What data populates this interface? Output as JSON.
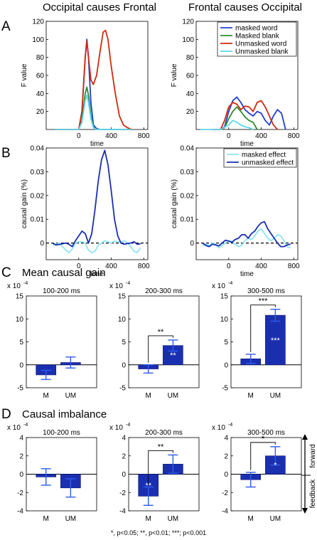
{
  "headers": {
    "col_left": "Occipital causes Frontal",
    "col_right": "Frontal causes Occipital"
  },
  "panel_letters": {
    "A": "A",
    "B": "B",
    "C": "C",
    "D": "D"
  },
  "section_titles": {
    "C": "Mean causal gain",
    "D": "Causal imbalance"
  },
  "scale_labels": {
    "C": "x 10",
    "D": "x 10",
    "exponent": "-4"
  },
  "footnote": "*, p<0.05; **, p<0.01; ***; p<0.001",
  "colors": {
    "masked_word": "#1f3fd0",
    "masked_blank": "#2e8b2e",
    "unmasked_word": "#d02a10",
    "unmasked_blank": "#5fd8ee",
    "masked_effect": "#8ee4f6",
    "unmasked_effect": "#1a2fb0",
    "bar_fill": "#1a2fb0",
    "error_bar": "#2e5cf0"
  },
  "chart_data": [
    {
      "id": "A-left",
      "type": "line",
      "ylabel": "F value",
      "xlabel": "time",
      "xlim": [
        -400,
        850
      ],
      "ylim": [
        0,
        120
      ],
      "xticks": [
        0,
        400,
        800
      ],
      "yticks": [
        20,
        40,
        60,
        80,
        100,
        120
      ],
      "series": [
        {
          "name": "masked word",
          "color_key": "masked_word",
          "x": [
            -300,
            0,
            40,
            80,
            100,
            120,
            150,
            180,
            220,
            260,
            300,
            400,
            500,
            600,
            650
          ],
          "y": [
            0,
            0,
            20,
            80,
            100,
            80,
            30,
            5,
            1,
            0,
            0,
            0,
            0,
            0,
            0
          ]
        },
        {
          "name": "Masked blank",
          "color_key": "masked_blank",
          "x": [
            -300,
            0,
            40,
            80,
            100,
            120,
            150,
            180,
            220,
            260,
            300,
            400,
            500,
            600,
            650
          ],
          "y": [
            0,
            0,
            10,
            40,
            47,
            38,
            15,
            3,
            0,
            0,
            0,
            0,
            0,
            0,
            0
          ]
        },
        {
          "name": "Unmasked word",
          "color_key": "unmasked_word",
          "x": [
            -300,
            0,
            40,
            80,
            100,
            120,
            150,
            180,
            220,
            260,
            300,
            330,
            360,
            400,
            450,
            500,
            550,
            600,
            650
          ],
          "y": [
            0,
            0,
            20,
            80,
            98,
            80,
            55,
            50,
            60,
            85,
            108,
            110,
            100,
            70,
            40,
            15,
            5,
            2,
            0
          ]
        },
        {
          "name": "Unmasked blank",
          "color_key": "unmasked_blank",
          "x": [
            -300,
            0,
            40,
            80,
            100,
            120,
            150,
            180,
            220,
            260,
            300,
            400,
            500,
            600,
            650
          ],
          "y": [
            0,
            0,
            8,
            32,
            38,
            30,
            12,
            2,
            0,
            0,
            0,
            0,
            0,
            0,
            0
          ]
        }
      ]
    },
    {
      "id": "A-right",
      "type": "line",
      "ylabel": "F value",
      "xlabel": "time",
      "xlim": [
        -400,
        850
      ],
      "ylim": [
        0,
        120
      ],
      "xticks": [
        0,
        400,
        800
      ],
      "yticks": [
        20,
        40,
        60,
        80,
        100,
        120
      ],
      "legend_placement": "top-right",
      "series": [
        {
          "name": "masked word",
          "color_key": "masked_word",
          "x": [
            -100,
            -50,
            0,
            50,
            100,
            150,
            200,
            250,
            300,
            350,
            400,
            450,
            500,
            550,
            600,
            650,
            700
          ],
          "y": [
            0,
            3,
            20,
            32,
            36,
            30,
            22,
            18,
            15,
            20,
            18,
            10,
            5,
            15,
            22,
            18,
            0
          ]
        },
        {
          "name": "Masked blank",
          "color_key": "masked_blank",
          "x": [
            -100,
            -50,
            0,
            50,
            100,
            150,
            200,
            250,
            300,
            350
          ],
          "y": [
            0,
            2,
            12,
            20,
            25,
            20,
            14,
            10,
            8,
            0
          ]
        },
        {
          "name": "Unmasked word",
          "color_key": "unmasked_word",
          "x": [
            -200,
            -100,
            -50,
            0,
            50,
            100,
            150,
            200,
            250,
            300,
            350,
            400,
            450,
            500,
            550,
            600
          ],
          "y": [
            0,
            0,
            10,
            25,
            30,
            28,
            22,
            26,
            25,
            20,
            30,
            32,
            25,
            15,
            5,
            0
          ]
        },
        {
          "name": "Unmasked blank",
          "color_key": "unmasked_blank",
          "x": [
            -350,
            -300,
            -200,
            -100,
            0,
            50,
            100,
            150,
            200,
            250,
            300
          ],
          "y": [
            0,
            0,
            0,
            0,
            5,
            10,
            8,
            5,
            3,
            2,
            0
          ]
        }
      ]
    },
    {
      "id": "B-left",
      "type": "line",
      "ylabel": "causal gain (%)",
      "xlabel": "time",
      "xlim": [
        -400,
        850
      ],
      "ylim": [
        -0.007,
        0.04
      ],
      "xticks": [
        0,
        400,
        800
      ],
      "yticks": [
        0,
        0.01,
        0.02,
        0.03,
        0.04
      ],
      "series": [
        {
          "name": "masked effect",
          "color_key": "masked_effect",
          "x": [
            -320,
            -280,
            -240,
            -200,
            -160,
            -120,
            -80,
            -40,
            0,
            40,
            80,
            120,
            160,
            200,
            240,
            280,
            320,
            360,
            400,
            440,
            480,
            520,
            560,
            600,
            640,
            680,
            720,
            760
          ],
          "y": [
            -0.001,
            -0.0005,
            0,
            -0.0015,
            -0.003,
            -0.004,
            -0.0025,
            0,
            0.0005,
            0.0005,
            0,
            -0.003,
            -0.004,
            -0.0035,
            -0.001,
            0,
            0.001,
            0.0005,
            0,
            0.0008,
            0.0005,
            0.0003,
            0.001,
            0,
            -0.0015,
            -0.0035,
            -0.004,
            -0.002
          ]
        },
        {
          "name": "unmasked effect",
          "color_key": "unmasked_effect",
          "x": [
            -320,
            -280,
            -240,
            -200,
            -160,
            -120,
            -80,
            -40,
            0,
            40,
            80,
            120,
            160,
            200,
            240,
            280,
            320,
            360,
            400,
            440,
            480,
            520,
            560,
            600,
            640,
            680,
            720,
            760
          ],
          "y": [
            0,
            -0.0008,
            -0.0006,
            -0.0003,
            0,
            -0.0005,
            -0.0015,
            0.001,
            0.003,
            0.005,
            0.004,
            0,
            0.004,
            0.014,
            0.026,
            0.035,
            0.039,
            0.033,
            0.022,
            0.01,
            0.003,
            0,
            -0.0005,
            -0.0002,
            0,
            0.0005,
            -0.0005,
            -0.0003
          ]
        }
      ]
    },
    {
      "id": "B-right",
      "type": "line",
      "ylabel": "causal gain (%)",
      "xlabel": "time",
      "xlim": [
        -400,
        850
      ],
      "ylim": [
        -0.007,
        0.04
      ],
      "xticks": [
        0,
        400,
        800
      ],
      "yticks": [
        0,
        0.01,
        0.02,
        0.03,
        0.04
      ],
      "legend_placement": "top-right",
      "series": [
        {
          "name": "masked effect",
          "color_key": "masked_effect",
          "x": [
            -320,
            -280,
            -240,
            -200,
            -160,
            -120,
            -80,
            -40,
            0,
            40,
            80,
            120,
            160,
            200,
            240,
            280,
            320,
            360,
            400,
            440,
            480,
            520,
            560,
            600,
            640,
            680,
            720,
            760
          ],
          "y": [
            -0.001,
            -0.0005,
            -0.001,
            0,
            -0.0005,
            -0.002,
            -0.001,
            0,
            0.001,
            0.0008,
            -0.0005,
            -0.0015,
            -0.001,
            0.001,
            0.002,
            0.0015,
            0.003,
            0.005,
            0.006,
            0.004,
            0.002,
            0.001,
            0.002,
            0.0035,
            0.003,
            0.001,
            -0.0015,
            -0.002
          ]
        },
        {
          "name": "unmasked effect",
          "color_key": "unmasked_effect",
          "x": [
            -320,
            -280,
            -240,
            -200,
            -160,
            -120,
            -80,
            -40,
            0,
            40,
            80,
            120,
            160,
            200,
            240,
            280,
            320,
            360,
            400,
            440,
            480,
            520,
            560,
            600,
            640,
            680,
            720,
            760
          ],
          "y": [
            0,
            -0.001,
            -0.0015,
            -0.0005,
            -0.0008,
            -0.0012,
            0,
            0.0012,
            0.0008,
            0.0003,
            0.0015,
            0.002,
            0.0035,
            0.0035,
            0.002,
            0.004,
            0.005,
            0.007,
            0.0085,
            0.009,
            0.006,
            0.004,
            0.002,
            0,
            -0.0015,
            -0.0015,
            -0.0008,
            -0.0005
          ]
        }
      ]
    },
    {
      "id": "C-1",
      "type": "bar",
      "subtitle": "100-200 ms",
      "categories": [
        "M",
        "UM"
      ],
      "values": [
        -2.2,
        0.5
      ],
      "errors": [
        1.0,
        1.2
      ],
      "ylim": [
        -5,
        15
      ],
      "yticks": [
        -5,
        0,
        5,
        10,
        15
      ],
      "inbar": [
        "",
        ""
      ]
    },
    {
      "id": "C-2",
      "type": "bar",
      "subtitle": "200-300 ms",
      "categories": [
        "M",
        "UM"
      ],
      "values": [
        -0.9,
        4.2
      ],
      "errors": [
        0.9,
        1.2
      ],
      "ylim": [
        -5,
        15
      ],
      "yticks": [
        -5,
        0,
        5,
        10,
        15
      ],
      "inbar": [
        "",
        "**"
      ],
      "bracket": "**"
    },
    {
      "id": "C-3",
      "type": "bar",
      "subtitle": "300-500 ms",
      "categories": [
        "M",
        "UM"
      ],
      "values": [
        1.3,
        10.8
      ],
      "errors": [
        1.0,
        1.3
      ],
      "ylim": [
        -5,
        15
      ],
      "yticks": [
        -5,
        0,
        5,
        10,
        15
      ],
      "inbar": [
        "",
        "***"
      ],
      "bracket": "***"
    },
    {
      "id": "D-1",
      "type": "bar",
      "subtitle": "100-200 ms",
      "categories": [
        "M",
        "UM"
      ],
      "values": [
        -0.3,
        -1.5
      ],
      "errors": [
        0.9,
        1.0
      ],
      "ylim": [
        -4,
        4
      ],
      "yticks": [
        -4,
        -2,
        0,
        2,
        4
      ],
      "inbar": [
        "",
        ""
      ]
    },
    {
      "id": "D-2",
      "type": "bar",
      "subtitle": "200-300 ms",
      "categories": [
        "M",
        "UM"
      ],
      "values": [
        -2.4,
        1.1
      ],
      "errors": [
        1.0,
        1.0
      ],
      "ylim": [
        -4,
        4
      ],
      "yticks": [
        -4,
        -2,
        0,
        2,
        4
      ],
      "inbar": [
        "**",
        ""
      ],
      "bracket": "**"
    },
    {
      "id": "D-3",
      "type": "bar",
      "subtitle": "300-500 ms",
      "categories": [
        "M",
        "UM"
      ],
      "values": [
        -0.6,
        2.0
      ],
      "errors": [
        0.8,
        1.0
      ],
      "ylim": [
        -4,
        4
      ],
      "yticks": [
        -4,
        -2,
        0,
        2,
        4
      ],
      "inbar": [
        "",
        "*"
      ],
      "bracket": "*"
    }
  ],
  "direction_labels": {
    "up": "forward",
    "down": "feedback"
  }
}
